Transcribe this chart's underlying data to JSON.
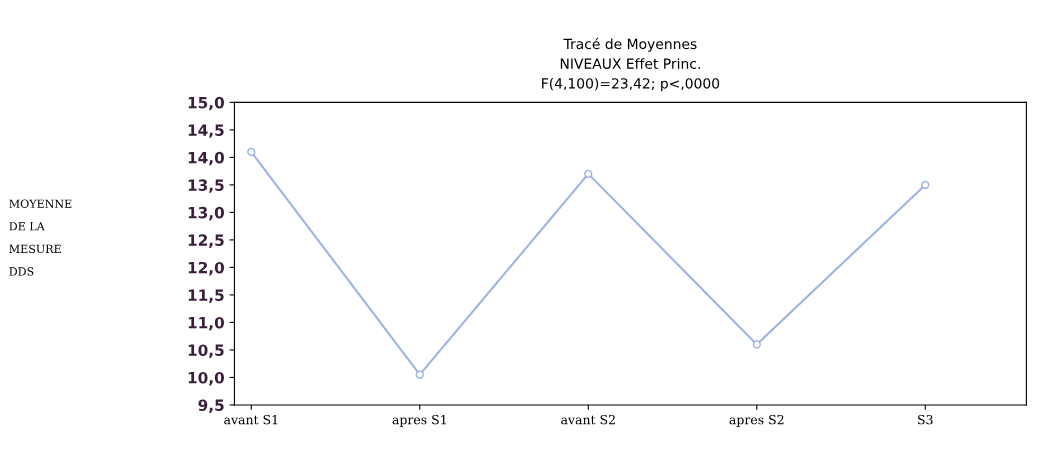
{
  "chart_data": {
    "type": "line",
    "title": "Tracé de Moyennes\nNIVEAUX Effet Princ.\nF(4,100)=23,42; p<,0000",
    "ylabel": "MOYENNE\nDE LA\nMESURE\nDDS",
    "categories": [
      "avant S1",
      "apres S1",
      "avant S2",
      "apres S2",
      "S3"
    ],
    "series": [
      {
        "color": "#9db3e3",
        "values": [
          14.1,
          10.05,
          13.7,
          10.6,
          13.5
        ]
      }
    ],
    "ylim": [
      9.5,
      15.0
    ],
    "yticks": [
      {
        "value": 9.5,
        "label": "9,5"
      },
      {
        "value": 10.0,
        "label": "10,0"
      },
      {
        "value": 10.5,
        "label": "10,5"
      },
      {
        "value": 11.0,
        "label": "11,0"
      },
      {
        "value": 11.5,
        "label": "11,5"
      },
      {
        "value": 12.0,
        "label": "12,0"
      },
      {
        "value": 12.5,
        "label": "12,5"
      },
      {
        "value": 13.0,
        "label": "13,0"
      },
      {
        "value": 13.5,
        "label": "13,5"
      },
      {
        "value": 14.0,
        "label": "14,0"
      },
      {
        "value": 14.5,
        "label": "14,5"
      },
      {
        "value": 15.0,
        "label": "15,0"
      }
    ],
    "marker": "circle",
    "line_style": "solid",
    "grid": false,
    "legend": false
  }
}
